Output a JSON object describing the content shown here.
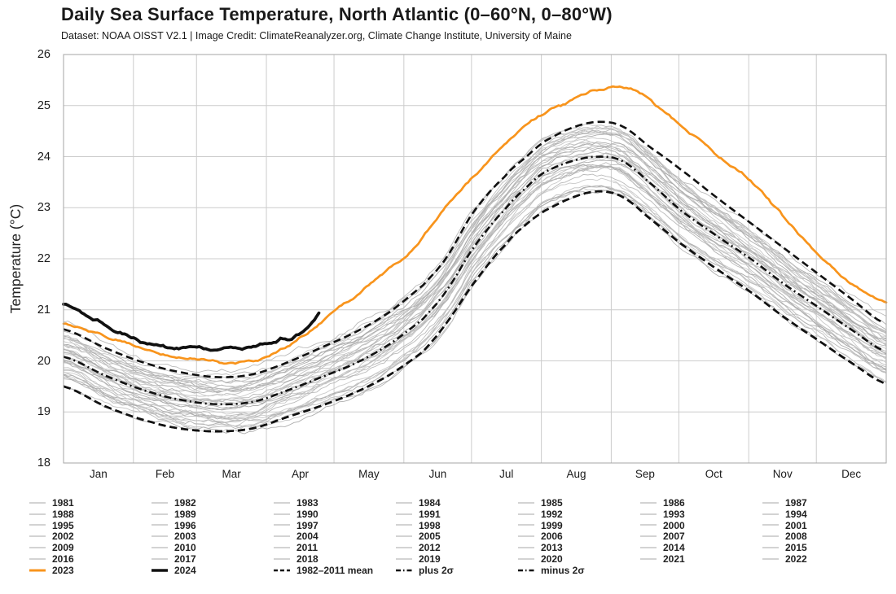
{
  "chart_data": {
    "type": "line",
    "title": "Daily Sea Surface Temperature, North Atlantic (0–60°N, 0–80°W)",
    "subtitle": "Dataset: NOAA OISST V2.1 | Image Credit: ClimateReanalyzer.org, Climate Change Institute, University of Maine",
    "ylabel": "Temperature (°C)",
    "xlabel": "",
    "ylim": [
      18,
      26
    ],
    "yticks": [
      18,
      19,
      20,
      21,
      22,
      23,
      24,
      25,
      26
    ],
    "months": [
      "Jan",
      "Feb",
      "Mar",
      "Apr",
      "May",
      "Jun",
      "Jul",
      "Aug",
      "Sep",
      "Oct",
      "Nov",
      "Dec"
    ],
    "month_boundary_days": [
      0,
      31,
      59,
      90,
      120,
      151,
      181,
      212,
      243,
      273,
      304,
      334,
      365
    ],
    "grid": true,
    "legend_position": "bottom",
    "colors": {
      "highlight_2023": "#f8941c",
      "highlight_2024": "#111111",
      "stat_lines": "#111111",
      "year_lines": "#b9b9b9",
      "gridline": "#cccccc",
      "axis_border": "#a6a6a6",
      "text": "#1a1a1a"
    },
    "series": [
      {
        "name": "1982–2011 mean",
        "style": "mean",
        "points": [
          [
            1,
            20.08
          ],
          [
            20,
            19.7
          ],
          [
            40,
            19.38
          ],
          [
            55,
            19.22
          ],
          [
            70,
            19.15
          ],
          [
            85,
            19.2
          ],
          [
            100,
            19.42
          ],
          [
            115,
            19.68
          ],
          [
            130,
            19.95
          ],
          [
            145,
            20.32
          ],
          [
            160,
            20.82
          ],
          [
            170,
            21.35
          ],
          [
            182,
            22.2
          ],
          [
            196,
            22.95
          ],
          [
            206,
            23.4
          ],
          [
            213,
            23.68
          ],
          [
            225,
            23.9
          ],
          [
            237,
            24.0
          ],
          [
            248,
            23.92
          ],
          [
            260,
            23.5
          ],
          [
            274,
            22.95
          ],
          [
            290,
            22.45
          ],
          [
            305,
            22.0
          ],
          [
            320,
            21.5
          ],
          [
            335,
            21.05
          ],
          [
            350,
            20.6
          ],
          [
            365,
            20.18
          ]
        ]
      },
      {
        "name": "plus 2σ",
        "style": "sigma",
        "points": [
          [
            1,
            20.62
          ],
          [
            20,
            20.24
          ],
          [
            40,
            19.92
          ],
          [
            55,
            19.76
          ],
          [
            70,
            19.68
          ],
          [
            85,
            19.74
          ],
          [
            100,
            19.97
          ],
          [
            115,
            20.26
          ],
          [
            130,
            20.56
          ],
          [
            145,
            20.95
          ],
          [
            160,
            21.48
          ],
          [
            170,
            22.0
          ],
          [
            182,
            22.9
          ],
          [
            196,
            23.6
          ],
          [
            206,
            24.0
          ],
          [
            213,
            24.28
          ],
          [
            225,
            24.55
          ],
          [
            237,
            24.68
          ],
          [
            248,
            24.6
          ],
          [
            260,
            24.2
          ],
          [
            274,
            23.75
          ],
          [
            290,
            23.2
          ],
          [
            305,
            22.7
          ],
          [
            320,
            22.2
          ],
          [
            335,
            21.7
          ],
          [
            350,
            21.2
          ],
          [
            365,
            20.72
          ]
        ]
      },
      {
        "name": "minus 2σ",
        "style": "sigma",
        "points": [
          [
            1,
            19.5
          ],
          [
            20,
            19.1
          ],
          [
            40,
            18.8
          ],
          [
            55,
            18.66
          ],
          [
            70,
            18.62
          ],
          [
            85,
            18.68
          ],
          [
            100,
            18.9
          ],
          [
            115,
            19.12
          ],
          [
            130,
            19.38
          ],
          [
            145,
            19.72
          ],
          [
            160,
            20.18
          ],
          [
            170,
            20.72
          ],
          [
            182,
            21.5
          ],
          [
            196,
            22.25
          ],
          [
            206,
            22.68
          ],
          [
            213,
            22.92
          ],
          [
            225,
            23.18
          ],
          [
            237,
            23.32
          ],
          [
            248,
            23.22
          ],
          [
            260,
            22.8
          ],
          [
            274,
            22.3
          ],
          [
            290,
            21.8
          ],
          [
            305,
            21.35
          ],
          [
            320,
            20.85
          ],
          [
            335,
            20.4
          ],
          [
            350,
            19.95
          ],
          [
            365,
            19.55
          ]
        ]
      },
      {
        "name": "2023",
        "style": "y2023",
        "points": [
          [
            1,
            20.74
          ],
          [
            15,
            20.54
          ],
          [
            32,
            20.32
          ],
          [
            50,
            20.1
          ],
          [
            62,
            20.0
          ],
          [
            72,
            19.95
          ],
          [
            82,
            20.0
          ],
          [
            91,
            20.08
          ],
          [
            105,
            20.4
          ],
          [
            121,
            20.95
          ],
          [
            135,
            21.42
          ],
          [
            152,
            22.02
          ],
          [
            167,
            22.85
          ],
          [
            182,
            23.6
          ],
          [
            198,
            24.32
          ],
          [
            213,
            24.82
          ],
          [
            222,
            25.0
          ],
          [
            232,
            25.2
          ],
          [
            240,
            25.32
          ],
          [
            248,
            25.37
          ],
          [
            256,
            25.28
          ],
          [
            265,
            24.95
          ],
          [
            274,
            24.6
          ],
          [
            290,
            24.05
          ],
          [
            305,
            23.55
          ],
          [
            318,
            22.9
          ],
          [
            328,
            22.4
          ],
          [
            335,
            22.05
          ],
          [
            345,
            21.7
          ],
          [
            355,
            21.38
          ],
          [
            365,
            21.15
          ]
        ]
      },
      {
        "name": "2024",
        "style": "y2024",
        "points": [
          [
            1,
            21.12
          ],
          [
            5,
            21.06
          ],
          [
            9,
            20.96
          ],
          [
            13,
            20.86
          ],
          [
            17,
            20.8
          ],
          [
            21,
            20.7
          ],
          [
            25,
            20.62
          ],
          [
            28,
            20.57
          ],
          [
            31,
            20.52
          ],
          [
            35,
            20.42
          ],
          [
            39,
            20.35
          ],
          [
            44,
            20.32
          ],
          [
            48,
            20.28
          ],
          [
            52,
            20.26
          ],
          [
            56,
            20.3
          ],
          [
            60,
            20.33
          ],
          [
            64,
            20.28
          ],
          [
            68,
            20.26
          ],
          [
            72,
            20.28
          ],
          [
            76,
            20.3
          ],
          [
            80,
            20.27
          ],
          [
            84,
            20.29
          ],
          [
            88,
            20.31
          ],
          [
            92,
            20.33
          ],
          [
            95,
            20.37
          ],
          [
            98,
            20.44
          ],
          [
            101,
            20.39
          ],
          [
            104,
            20.46
          ],
          [
            107,
            20.54
          ],
          [
            110,
            20.66
          ],
          [
            112,
            20.78
          ],
          [
            114,
            20.93
          ]
        ]
      }
    ],
    "background_years": {
      "start_year": 1981,
      "end_year": 2022,
      "partial_first_year_start_day": 244,
      "band_offset_range": [
        -0.6,
        0.62
      ]
    },
    "legend_entries": [
      {
        "label": "1981",
        "style": "year"
      },
      {
        "label": "1982",
        "style": "year"
      },
      {
        "label": "1983",
        "style": "year"
      },
      {
        "label": "1984",
        "style": "year"
      },
      {
        "label": "1985",
        "style": "year"
      },
      {
        "label": "1986",
        "style": "year"
      },
      {
        "label": "1987",
        "style": "year"
      },
      {
        "label": "1988",
        "style": "year"
      },
      {
        "label": "1989",
        "style": "year"
      },
      {
        "label": "1990",
        "style": "year"
      },
      {
        "label": "1991",
        "style": "year"
      },
      {
        "label": "1992",
        "style": "year"
      },
      {
        "label": "1993",
        "style": "year"
      },
      {
        "label": "1994",
        "style": "year"
      },
      {
        "label": "1995",
        "style": "year"
      },
      {
        "label": "1996",
        "style": "year"
      },
      {
        "label": "1997",
        "style": "year"
      },
      {
        "label": "1998",
        "style": "year"
      },
      {
        "label": "1999",
        "style": "year"
      },
      {
        "label": "2000",
        "style": "year"
      },
      {
        "label": "2001",
        "style": "year"
      },
      {
        "label": "2002",
        "style": "year"
      },
      {
        "label": "2003",
        "style": "year"
      },
      {
        "label": "2004",
        "style": "year"
      },
      {
        "label": "2005",
        "style": "year"
      },
      {
        "label": "2006",
        "style": "year"
      },
      {
        "label": "2007",
        "style": "year"
      },
      {
        "label": "2008",
        "style": "year"
      },
      {
        "label": "2009",
        "style": "year"
      },
      {
        "label": "2010",
        "style": "year"
      },
      {
        "label": "2011",
        "style": "year"
      },
      {
        "label": "2012",
        "style": "year"
      },
      {
        "label": "2013",
        "style": "year"
      },
      {
        "label": "2014",
        "style": "year"
      },
      {
        "label": "2015",
        "style": "year"
      },
      {
        "label": "2016",
        "style": "year"
      },
      {
        "label": "2017",
        "style": "year"
      },
      {
        "label": "2018",
        "style": "year"
      },
      {
        "label": "2019",
        "style": "year"
      },
      {
        "label": "2020",
        "style": "year"
      },
      {
        "label": "2021",
        "style": "year"
      },
      {
        "label": "2022",
        "style": "year"
      },
      {
        "label": "2023",
        "style": "y2023"
      },
      {
        "label": "2024",
        "style": "y2024"
      },
      {
        "label": "1982–2011 mean",
        "style": "mean"
      },
      {
        "label": "plus 2σ",
        "style": "sigma"
      },
      {
        "label": "minus 2σ",
        "style": "sigma"
      }
    ]
  }
}
